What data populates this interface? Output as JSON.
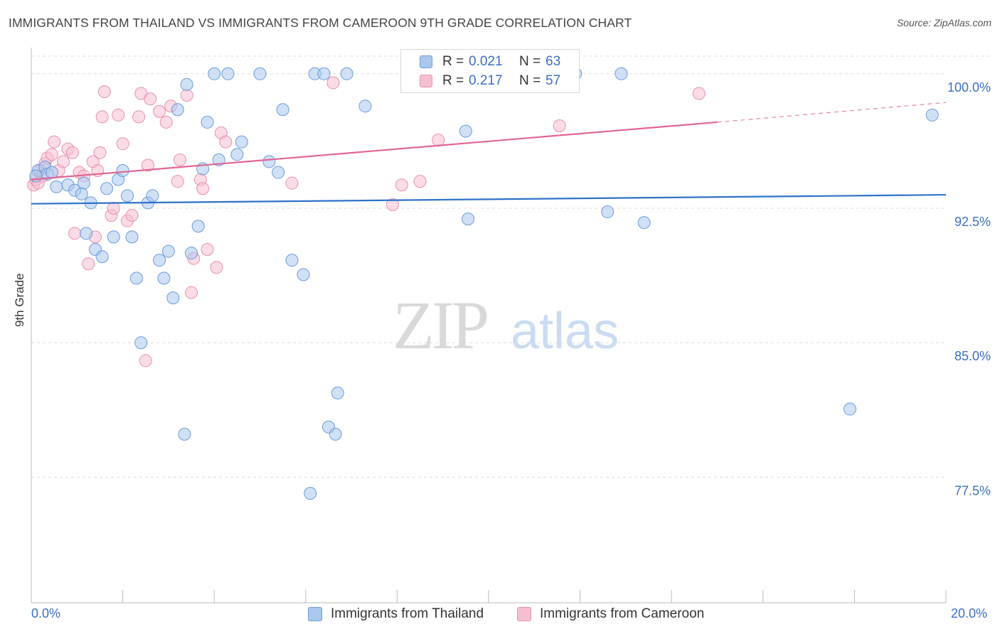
{
  "title": "IMMIGRANTS FROM THAILAND VS IMMIGRANTS FROM CAMEROON 9TH GRADE CORRELATION CHART",
  "source": "Source: ZipAtlas.com",
  "watermark": {
    "zip": "ZIP",
    "atlas": "atlas"
  },
  "legend_top": {
    "rows": [
      {
        "r_label": "R =",
        "r_value": "0.021",
        "n_label": "N =",
        "n_value": "63"
      },
      {
        "r_label": "R =",
        "r_value": "0.217",
        "n_label": "N =",
        "n_value": "57"
      }
    ]
  },
  "legend_bottom": {
    "series1": "Immigrants from Thailand",
    "series2": "Immigrants from Cameroon"
  },
  "axis": {
    "y_title": "9th Grade",
    "x_min_label": "0.0%",
    "x_max_label": "20.0%",
    "y_ticks": [
      "100.0%",
      "92.5%",
      "85.0%",
      "77.5%"
    ]
  },
  "colors": {
    "blue_fill": "#aac8ee",
    "blue_stroke": "#6b9bd8",
    "blue_line": "#2f72c9",
    "pink_fill": "#f6bfd1",
    "pink_stroke": "#e890ad",
    "pink_line": "#e06595",
    "tick_label": "#3a6fc4"
  },
  "chart_data": {
    "type": "scatter",
    "title": "IMMIGRANTS FROM THAILAND VS IMMIGRANTS FROM CAMEROON 9TH GRADE CORRELATION CHART",
    "xlabel": "",
    "ylabel": "9th Grade",
    "xlim": [
      0,
      20
    ],
    "ylim": [
      70.5,
      101.3
    ],
    "y_ticks": [
      100,
      92.5,
      85,
      77.5
    ],
    "x_ticks_labeled": [
      0,
      20
    ],
    "grid": true,
    "legend": "bottom",
    "series": [
      {
        "name": "Immigrants from Thailand",
        "color": "blue",
        "trend": {
          "x": [
            0,
            20
          ],
          "y": [
            92.75,
            93.25
          ]
        },
        "points": [
          [
            0.15,
            94.6
          ],
          [
            0.3,
            94.8
          ],
          [
            0.35,
            94.4
          ],
          [
            0.55,
            93.7
          ],
          [
            0.8,
            93.8
          ],
          [
            0.95,
            93.5
          ],
          [
            1.15,
            93.9
          ],
          [
            1.1,
            93.3
          ],
          [
            1.3,
            92.8
          ],
          [
            1.2,
            91.1
          ],
          [
            1.4,
            90.2
          ],
          [
            1.55,
            89.8
          ],
          [
            1.65,
            93.6
          ],
          [
            1.8,
            90.9
          ],
          [
            1.9,
            94.1
          ],
          [
            2.0,
            94.6
          ],
          [
            2.1,
            93.2
          ],
          [
            2.2,
            90.9
          ],
          [
            2.3,
            88.6
          ],
          [
            2.4,
            85.0
          ],
          [
            2.55,
            92.8
          ],
          [
            2.65,
            93.2
          ],
          [
            2.8,
            89.6
          ],
          [
            2.9,
            88.6
          ],
          [
            3.0,
            90.1
          ],
          [
            3.1,
            87.5
          ],
          [
            3.2,
            98.0
          ],
          [
            3.35,
            79.9
          ],
          [
            3.4,
            99.4
          ],
          [
            3.5,
            90.0
          ],
          [
            3.65,
            91.5
          ],
          [
            3.75,
            94.7
          ],
          [
            3.85,
            97.3
          ],
          [
            4.0,
            100.0
          ],
          [
            4.1,
            95.2
          ],
          [
            4.3,
            100.0
          ],
          [
            4.5,
            95.5
          ],
          [
            4.6,
            96.2
          ],
          [
            5.0,
            100.0
          ],
          [
            5.2,
            95.1
          ],
          [
            5.4,
            94.5
          ],
          [
            5.5,
            98.0
          ],
          [
            5.7,
            89.6
          ],
          [
            5.95,
            88.8
          ],
          [
            6.1,
            76.6
          ],
          [
            6.2,
            100.0
          ],
          [
            6.4,
            100.0
          ],
          [
            6.5,
            80.3
          ],
          [
            6.65,
            79.9
          ],
          [
            6.7,
            82.2
          ],
          [
            6.9,
            100.0
          ],
          [
            7.3,
            98.2
          ],
          [
            8.5,
            100.0
          ],
          [
            9.5,
            96.8
          ],
          [
            9.55,
            91.9
          ],
          [
            11.9,
            100.0
          ],
          [
            12.6,
            92.3
          ],
          [
            12.9,
            100.0
          ],
          [
            13.4,
            91.7
          ],
          [
            17.9,
            81.3
          ],
          [
            19.7,
            97.7
          ],
          [
            0.1,
            94.3
          ],
          [
            0.45,
            94.5
          ]
        ]
      },
      {
        "name": "Immigrants from Cameroon",
        "color": "pink",
        "trend": {
          "x": [
            0,
            15
          ],
          "y": [
            94.1,
            97.3
          ],
          "dashed_extension": {
            "x": [
              15,
              20
            ],
            "y": [
              97.3,
              98.4
            ]
          }
        },
        "points": [
          [
            0.05,
            93.8
          ],
          [
            0.1,
            94.1
          ],
          [
            0.2,
            94.6
          ],
          [
            0.3,
            95.0
          ],
          [
            0.35,
            95.3
          ],
          [
            0.45,
            95.5
          ],
          [
            0.5,
            96.2
          ],
          [
            0.6,
            94.6
          ],
          [
            0.7,
            95.1
          ],
          [
            0.8,
            95.8
          ],
          [
            0.9,
            95.6
          ],
          [
            0.95,
            91.1
          ],
          [
            1.05,
            94.5
          ],
          [
            1.15,
            94.3
          ],
          [
            1.25,
            89.4
          ],
          [
            1.35,
            95.1
          ],
          [
            1.4,
            90.9
          ],
          [
            1.45,
            94.6
          ],
          [
            1.5,
            95.6
          ],
          [
            1.55,
            97.6
          ],
          [
            1.6,
            99.0
          ],
          [
            1.75,
            92.1
          ],
          [
            1.8,
            92.5
          ],
          [
            1.9,
            97.7
          ],
          [
            2.0,
            96.1
          ],
          [
            2.1,
            91.8
          ],
          [
            2.2,
            92.1
          ],
          [
            2.35,
            97.6
          ],
          [
            2.4,
            98.9
          ],
          [
            2.5,
            84.0
          ],
          [
            2.55,
            94.9
          ],
          [
            2.6,
            98.6
          ],
          [
            2.8,
            97.9
          ],
          [
            2.95,
            97.3
          ],
          [
            3.05,
            98.2
          ],
          [
            3.2,
            94.0
          ],
          [
            3.25,
            95.2
          ],
          [
            3.4,
            98.8
          ],
          [
            3.5,
            87.8
          ],
          [
            3.55,
            89.7
          ],
          [
            3.7,
            94.1
          ],
          [
            3.75,
            93.6
          ],
          [
            3.85,
            90.2
          ],
          [
            4.05,
            89.2
          ],
          [
            4.15,
            96.7
          ],
          [
            4.25,
            96.2
          ],
          [
            5.7,
            93.9
          ],
          [
            6.6,
            99.5
          ],
          [
            7.9,
            92.7
          ],
          [
            8.1,
            93.8
          ],
          [
            8.5,
            94.0
          ],
          [
            8.9,
            96.3
          ],
          [
            11.4,
            100.0
          ],
          [
            11.55,
            97.1
          ],
          [
            14.6,
            98.9
          ],
          [
            0.15,
            93.9
          ],
          [
            0.25,
            94.3
          ]
        ]
      }
    ]
  }
}
